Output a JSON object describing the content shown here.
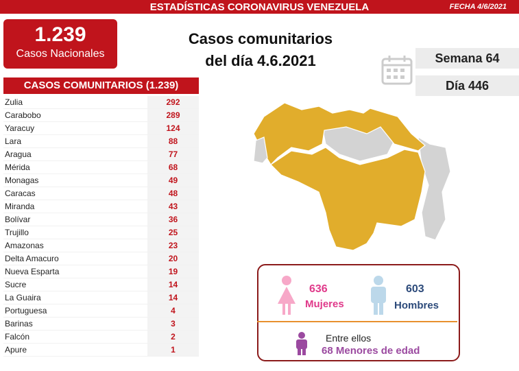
{
  "header": {
    "title": "ESTADÍSTICAS CORONAVIRUS VENEZUELA",
    "date": "FECHA 4/6/2021"
  },
  "national": {
    "value": "1.239",
    "label": "Casos Nacionales"
  },
  "headline": [
    "Casos comunitarios",
    "del día 4.6.2021"
  ],
  "week": "Semana 64",
  "day": "Día 446",
  "table": {
    "title": "CASOS COMUNITARIOS (1.239)",
    "rows": [
      [
        "Zulia",
        292
      ],
      [
        "Carabobo",
        289
      ],
      [
        "Yaracuy",
        124
      ],
      [
        "Lara",
        88
      ],
      [
        "Aragua",
        77
      ],
      [
        "Mérida",
        68
      ],
      [
        "Monagas",
        49
      ],
      [
        "Caracas",
        48
      ],
      [
        "Miranda",
        43
      ],
      [
        "Bolívar",
        36
      ],
      [
        "Trujillo",
        25
      ],
      [
        "Amazonas",
        23
      ],
      [
        "Delta Amacuro",
        20
      ],
      [
        "Nueva Esparta",
        19
      ],
      [
        "Sucre",
        14
      ],
      [
        "La Guaira",
        14
      ],
      [
        "Portuguesa",
        4
      ],
      [
        "Barinas",
        3
      ],
      [
        "Falcón",
        2
      ],
      [
        "Apure",
        1
      ]
    ]
  },
  "gender": {
    "women": {
      "value": 636,
      "label": "Mujeres"
    },
    "men": {
      "value": 603,
      "label": "Hombres"
    },
    "minors": {
      "intro": "Entre ellos",
      "value": 68,
      "label": "Menores de edad"
    }
  }
}
